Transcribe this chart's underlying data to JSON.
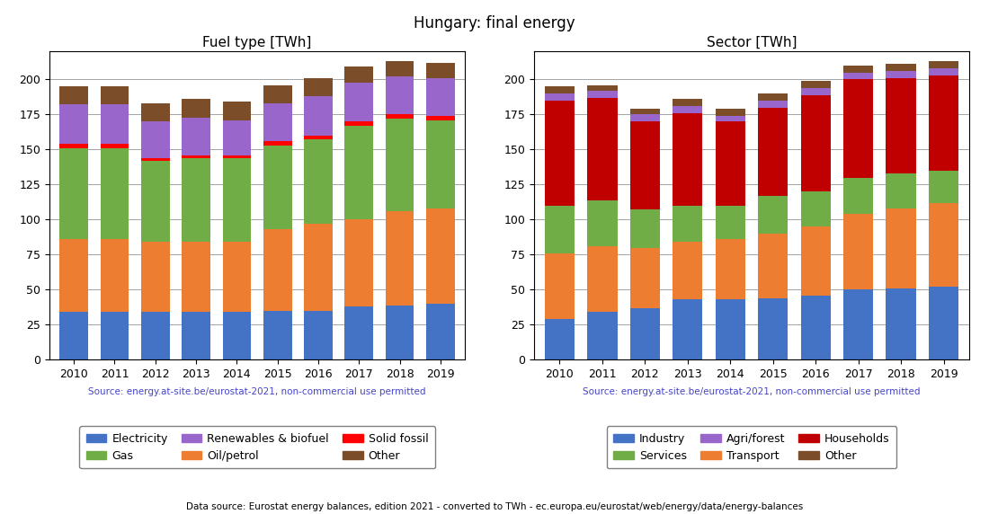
{
  "years": [
    2010,
    2011,
    2012,
    2013,
    2014,
    2015,
    2016,
    2017,
    2018,
    2019
  ],
  "fuel_type": {
    "Electricity": [
      34,
      34,
      34,
      34,
      34,
      35,
      35,
      38,
      39,
      40
    ],
    "Oil/petrol": [
      52,
      52,
      50,
      50,
      50,
      58,
      62,
      62,
      67,
      68
    ],
    "Gas": [
      65,
      65,
      58,
      60,
      60,
      60,
      60,
      67,
      66,
      63
    ],
    "Solid fossil": [
      3,
      3,
      2,
      2,
      2,
      3,
      3,
      3,
      3,
      3
    ],
    "Renewables & biofuel": [
      28,
      28,
      26,
      27,
      25,
      27,
      28,
      28,
      27,
      27
    ],
    "Other": [
      13,
      13,
      13,
      13,
      13,
      13,
      13,
      11,
      11,
      11
    ]
  },
  "fuel_colors": {
    "Electricity": "#4472c4",
    "Oil/petrol": "#ed7d31",
    "Gas": "#70ad47",
    "Solid fossil": "#ff0000",
    "Renewables & biofuel": "#9966cc",
    "Other": "#7b4d28"
  },
  "fuel_stack_order": [
    "Electricity",
    "Oil/petrol",
    "Gas",
    "Solid fossil",
    "Renewables & biofuel",
    "Other"
  ],
  "fuel_legend_order": [
    "Electricity",
    "Gas",
    "Renewables & biofuel",
    "Oil/petrol",
    "Solid fossil",
    "Other"
  ],
  "sector": {
    "Industry": [
      29,
      34,
      37,
      43,
      43,
      44,
      46,
      50,
      51,
      52
    ],
    "Transport": [
      47,
      47,
      43,
      41,
      43,
      46,
      49,
      54,
      57,
      60
    ],
    "Households": [
      75,
      73,
      63,
      66,
      60,
      63,
      69,
      70,
      68,
      68
    ],
    "Services": [
      34,
      33,
      27,
      26,
      24,
      27,
      25,
      26,
      25,
      23
    ],
    "Agri/forest": [
      5,
      5,
      5,
      5,
      4,
      5,
      5,
      5,
      5,
      5
    ],
    "Other": [
      5,
      4,
      4,
      5,
      5,
      5,
      5,
      5,
      5,
      5
    ]
  },
  "sector_colors": {
    "Industry": "#4472c4",
    "Transport": "#ed7d31",
    "Households": "#c00000",
    "Services": "#70ad47",
    "Agri/forest": "#9966cc",
    "Other": "#7b4d28"
  },
  "sector_stack_order": [
    "Industry",
    "Transport",
    "Services",
    "Households",
    "Agri/forest",
    "Other"
  ],
  "sector_legend_order": [
    "Industry",
    "Services",
    "Agri/forest",
    "Transport",
    "Households",
    "Other"
  ],
  "title": "Hungary: final energy",
  "left_subtitle": "Fuel type [TWh]",
  "right_subtitle": "Sector [TWh]",
  "source_text": "Source: energy.at-site.be/eurostat-2021, non-commercial use permitted",
  "footer_text": "Data source: Eurostat energy balances, edition 2021 - converted to TWh - ec.europa.eu/eurostat/web/energy/data/energy-balances",
  "ylim": [
    0,
    220
  ]
}
